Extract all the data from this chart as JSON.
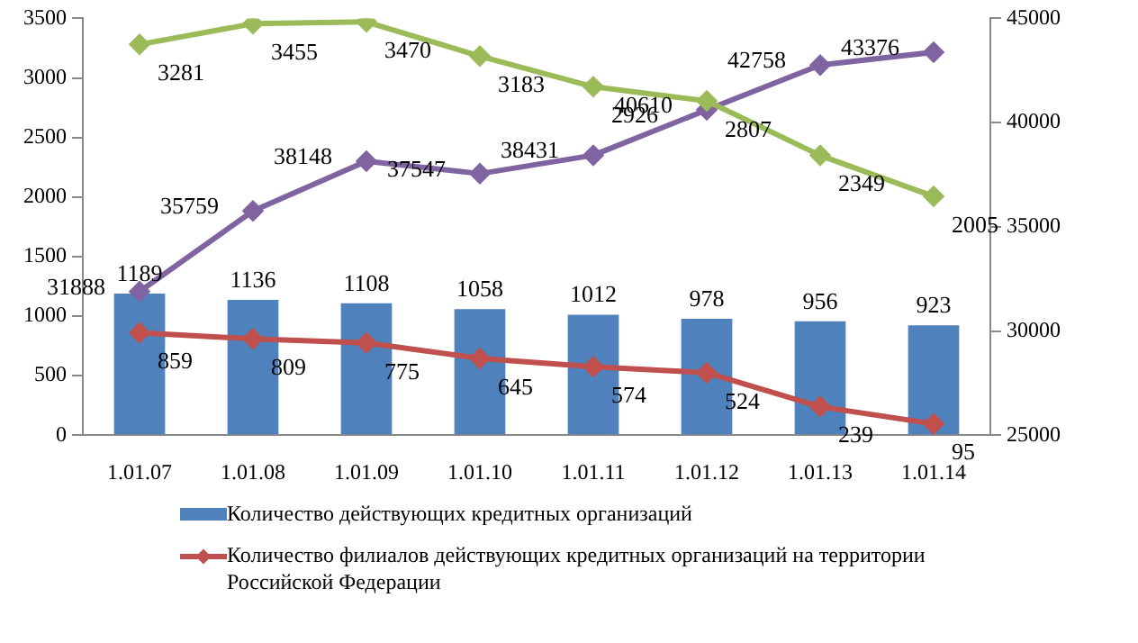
{
  "chart_data": {
    "type": "bar",
    "categories": [
      "1.01.07",
      "1.01.08",
      "1.01.09",
      "1.01.10",
      "1.01.11",
      "1.01.12",
      "1.01.13",
      "1.01.14"
    ],
    "series": [
      {
        "name": "Количество действующих кредитных организаций",
        "color": "#4f81bd",
        "values": [
          1189,
          1136,
          1108,
          1058,
          1012,
          978,
          956,
          923
        ]
      },
      {
        "name": "Количество филиалов действующих кредитных организаций на территории Российской Федерации",
        "type": "line",
        "color": "#c0504d",
        "values": [
          859,
          809,
          775,
          645,
          574,
          524,
          239,
          95
        ]
      },
      {
        "type": "line",
        "color": "#9bbb59",
        "values": [
          3281,
          3455,
          3470,
          3183,
          2926,
          2807,
          2349,
          2005
        ]
      },
      {
        "type": "line",
        "axis": "y2",
        "color": "#8064a2",
        "values": [
          31888,
          35759,
          38148,
          37547,
          38431,
          40610,
          42758,
          43376
        ]
      }
    ],
    "ylim": [
      0,
      3500
    ],
    "yticks": [
      0,
      500,
      1000,
      1500,
      2000,
      2500,
      3000,
      3500
    ],
    "y2lim": [
      25000,
      45000
    ],
    "y2ticks": [
      25000,
      30000,
      35000,
      40000,
      45000
    ],
    "data_labels": true,
    "marker": "diamond",
    "legend": "bottom",
    "grid": false
  }
}
